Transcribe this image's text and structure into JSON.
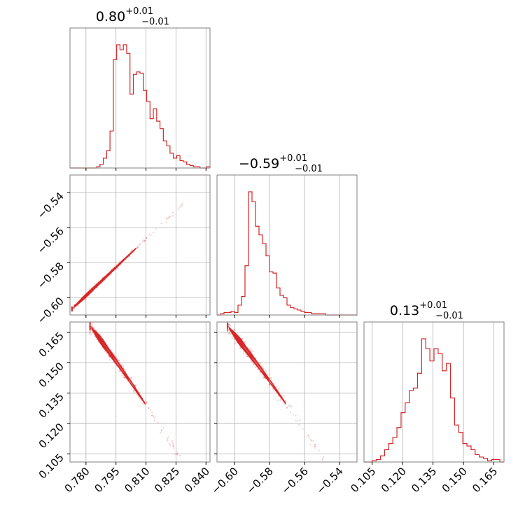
{
  "chart_data": {
    "type": "corner",
    "color": "#d62728",
    "grid": true,
    "parameters": [
      {
        "title": {
          "median": "0.80",
          "plus": "+0.01",
          "minus": "−0.01"
        },
        "range": [
          0.772,
          0.842
        ],
        "ticks": [
          0.78,
          0.795,
          0.81,
          0.825,
          0.84
        ],
        "tick_labels": [
          "0.780",
          "0.795",
          "0.810",
          "0.825",
          "0.840"
        ],
        "hist": [
          0,
          0,
          0,
          0,
          0,
          0,
          0,
          0,
          1,
          3,
          8,
          14,
          30,
          88,
          100,
          96,
          100,
          93,
          60,
          76,
          78,
          77,
          63,
          54,
          40,
          48,
          38,
          32,
          22,
          18,
          12,
          8,
          10,
          6,
          5,
          3,
          2,
          1,
          1,
          0,
          0,
          1
        ]
      },
      {
        "title": {
          "median": "−0.59",
          "plus": "+0.01",
          "minus": "−0.01"
        },
        "range": [
          -0.61,
          -0.53
        ],
        "ticks": [
          -0.6,
          -0.58,
          -0.56,
          -0.54
        ],
        "tick_labels": [
          "−0.60",
          "−0.58",
          "−0.56",
          "−0.54"
        ],
        "hist": [
          0,
          1,
          2,
          2,
          3,
          2,
          8,
          15,
          40,
          100,
          92,
          72,
          65,
          58,
          48,
          35,
          34,
          22,
          16,
          14,
          8,
          6,
          5,
          4,
          3,
          2,
          2,
          1,
          1,
          1,
          1,
          0,
          0,
          0,
          0,
          0,
          0,
          0,
          0,
          0
        ]
      },
      {
        "title": {
          "median": "0.13",
          "plus": "+0.01",
          "minus": "−0.01"
        },
        "range": [
          0.101,
          0.17
        ],
        "ticks": [
          0.105,
          0.12,
          0.135,
          0.15,
          0.165
        ],
        "tick_labels": [
          "0.105",
          "0.120",
          "0.135",
          "0.150",
          "0.165"
        ],
        "hist": [
          0,
          0,
          1,
          2,
          5,
          10,
          15,
          20,
          28,
          40,
          48,
          58,
          60,
          72,
          100,
          92,
          82,
          92,
          88,
          74,
          80,
          52,
          30,
          24,
          15,
          13,
          10,
          6,
          4,
          3,
          1,
          2,
          2,
          0
        ]
      }
    ]
  }
}
